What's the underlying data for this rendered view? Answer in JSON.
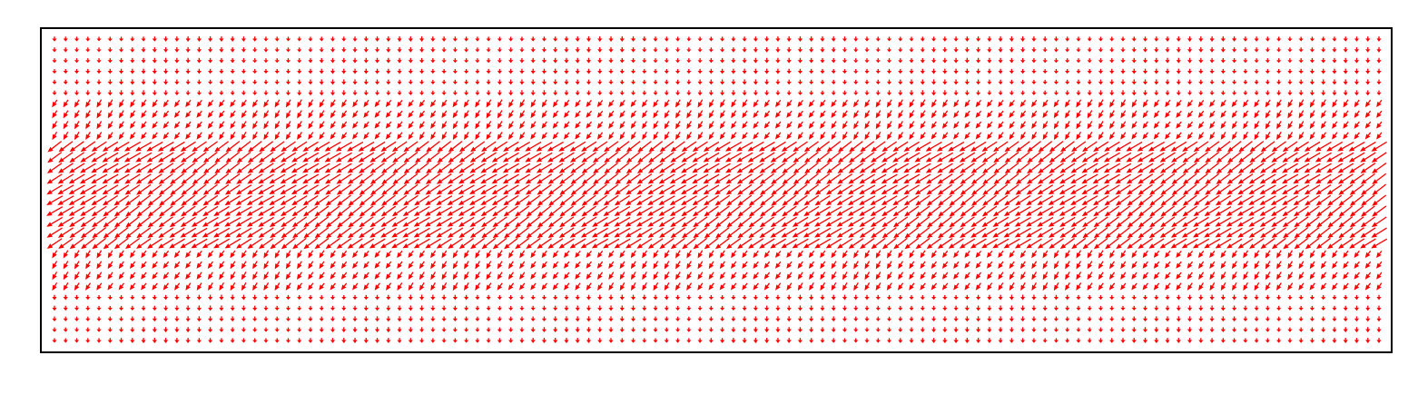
{
  "chart_data": {
    "type": "quiver",
    "title": "",
    "xlabel": "",
    "ylabel": "",
    "xlim": [
      0,
      120
    ],
    "ylim": [
      0,
      29
    ],
    "grid": false,
    "ticks": false,
    "legend": "none",
    "arrow_color": "#ff0000",
    "frame_color": "#000000",
    "grid_columns": 120,
    "grid_rows": 29,
    "arrows_all_point_down_left": true,
    "field": [
      {
        "rows": "0-5",
        "u": 0.0,
        "v": -0.5
      },
      {
        "rows": "6-9",
        "u": -0.5,
        "v": -0.75
      },
      {
        "rows": "10-19",
        "u": -1.5,
        "v": -1.0
      },
      {
        "rows": "20-23",
        "u": -0.5,
        "v": -0.75
      },
      {
        "rows": "24-28",
        "u": 0.0,
        "v": -0.5
      }
    ]
  }
}
